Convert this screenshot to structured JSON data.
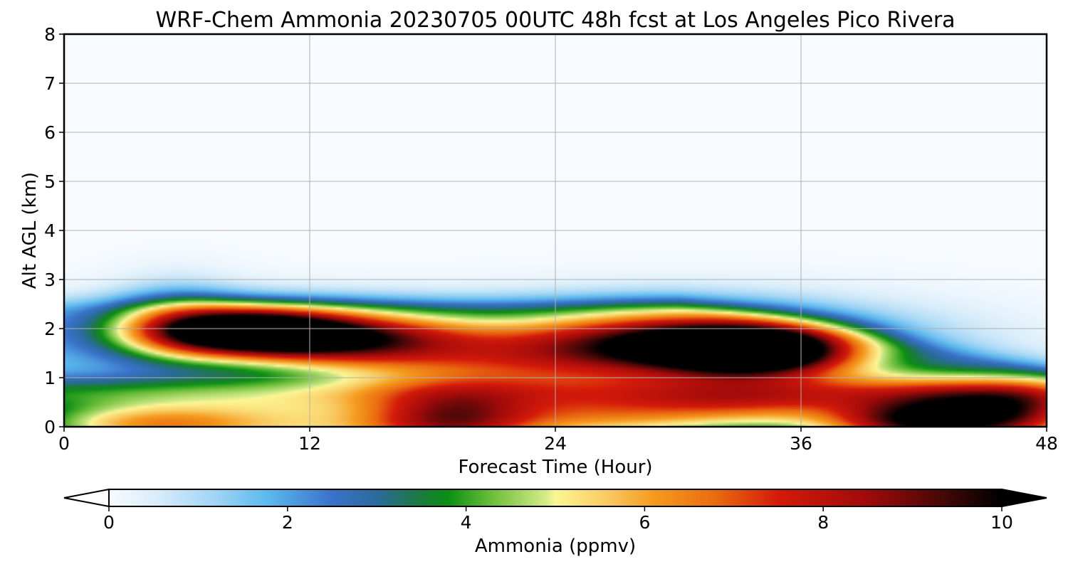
{
  "chart_data": {
    "type": "heatmap",
    "title": "WRF-Chem Ammonia  20230705 00UTC 48h fcst at Los Angeles Pico Rivera",
    "xlabel": "Forecast Time (Hour)",
    "ylabel": "Alt AGL (km)",
    "xlim": [
      0,
      48
    ],
    "ylim": [
      0,
      8
    ],
    "xticks": [
      0,
      12,
      24,
      36,
      48
    ],
    "yticks": [
      0,
      1,
      2,
      3,
      4,
      5,
      6,
      7,
      8
    ],
    "grid": true,
    "colorbar": {
      "label": "Ammonia  (ppmv)",
      "range": [
        0,
        10
      ],
      "ticks": [
        0,
        2,
        4,
        6,
        8,
        10
      ],
      "extend": "both",
      "colors": [
        {
          "v": 0.0,
          "c": "#f7fbff"
        },
        {
          "v": 0.5,
          "c": "#dbeefa"
        },
        {
          "v": 1.2,
          "c": "#9fd4f5"
        },
        {
          "v": 1.8,
          "c": "#5ab7ee"
        },
        {
          "v": 2.5,
          "c": "#3a72c9"
        },
        {
          "v": 3.0,
          "c": "#2a6b9a"
        },
        {
          "v": 3.5,
          "c": "#1b7a3c"
        },
        {
          "v": 3.8,
          "c": "#0b8f13"
        },
        {
          "v": 4.3,
          "c": "#6ebf3c"
        },
        {
          "v": 4.9,
          "c": "#d6eb8a"
        },
        {
          "v": 5.0,
          "c": "#fcf694"
        },
        {
          "v": 5.6,
          "c": "#f9c860"
        },
        {
          "v": 6.1,
          "c": "#f59b1e"
        },
        {
          "v": 6.8,
          "c": "#ea6a10"
        },
        {
          "v": 7.5,
          "c": "#d41a0a"
        },
        {
          "v": 8.5,
          "c": "#a00a0a"
        },
        {
          "v": 9.3,
          "c": "#4a0808"
        },
        {
          "v": 10.0,
          "c": "#000000"
        }
      ]
    },
    "blobs": [
      {
        "x": 9,
        "y": 1.95,
        "sx": 3.2,
        "sy": 0.32,
        "a": 8.0
      },
      {
        "x": 14,
        "y": 1.75,
        "sx": 4.0,
        "sy": 0.38,
        "a": 4.5
      },
      {
        "x": 10,
        "y": 1.95,
        "sx": 6.5,
        "sy": 0.45,
        "a": 3.0
      },
      {
        "x": 5.5,
        "y": 2.15,
        "sx": 2.2,
        "sy": 0.55,
        "a": 2.2
      },
      {
        "x": 34,
        "y": 1.55,
        "sx": 3.2,
        "sy": 0.35,
        "a": 8.0
      },
      {
        "x": 30,
        "y": 1.75,
        "sx": 4.5,
        "sy": 0.45,
        "a": 4.0
      },
      {
        "x": 31,
        "y": 1.7,
        "sx": 8.0,
        "sy": 0.6,
        "a": 3.0
      },
      {
        "x": 24,
        "y": 1.5,
        "sx": 6.0,
        "sy": 0.5,
        "a": 2.6
      },
      {
        "x": 20,
        "y": 1.2,
        "sx": 6.0,
        "sy": 0.45,
        "a": 1.6
      },
      {
        "x": 19,
        "y": 0.15,
        "sx": 3.0,
        "sy": 0.45,
        "a": 5.0
      },
      {
        "x": 13,
        "y": 0.0,
        "sx": 6.0,
        "sy": 0.4,
        "a": 3.0
      },
      {
        "x": 4,
        "y": 0.05,
        "sx": 4.0,
        "sy": 0.3,
        "a": 4.0
      },
      {
        "x": 26,
        "y": 0.2,
        "sx": 4.0,
        "sy": 0.35,
        "a": 3.5
      },
      {
        "x": 33,
        "y": 0.4,
        "sx": 4.0,
        "sy": 0.35,
        "a": 3.0
      },
      {
        "x": 44,
        "y": 0.2,
        "sx": 3.5,
        "sy": 0.45,
        "a": 5.0
      },
      {
        "x": 41,
        "y": 0.05,
        "sx": 3.0,
        "sy": 0.3,
        "a": 4.0
      },
      {
        "x": 47,
        "y": 0.3,
        "sx": 2.5,
        "sy": 0.45,
        "a": 3.0
      },
      {
        "x": 40,
        "y": 0.6,
        "sx": 6.0,
        "sy": 0.45,
        "a": 1.8
      },
      {
        "x": 11,
        "y": 0.4,
        "sx": 4.0,
        "sy": 0.25,
        "a": 0.4
      }
    ],
    "base": 1.3
  }
}
